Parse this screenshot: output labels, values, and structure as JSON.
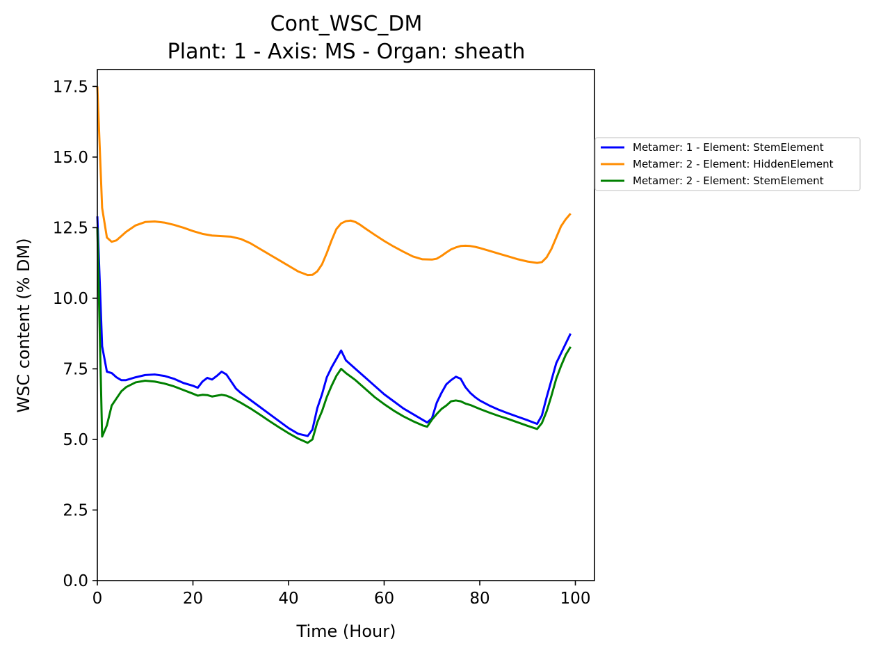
{
  "chart_data": {
    "type": "line",
    "title": "Cont_WSC_DM",
    "subtitle": "Plant: 1 - Axis: MS - Organ: sheath",
    "xlabel": "Time (Hour)",
    "ylabel": "WSC content (% DM)",
    "xlim": [
      0,
      104
    ],
    "ylim": [
      0,
      18.1
    ],
    "xticks": [
      0,
      20,
      40,
      60,
      80,
      100
    ],
    "xtick_labels": [
      "0",
      "20",
      "40",
      "60",
      "80",
      "100"
    ],
    "yticks": [
      0,
      2.5,
      5,
      7.5,
      10,
      12.5,
      15,
      17.5
    ],
    "ytick_labels": [
      "0.0",
      "2.5",
      "5.0",
      "7.5",
      "10.0",
      "12.5",
      "15.0",
      "17.5"
    ],
    "grid": false,
    "legend_position": "outside-right",
    "series": [
      {
        "name": "Metamer: 1 - Element: StemElement",
        "color": "#0000ff",
        "x": [
          0,
          1,
          2,
          3,
          4,
          5,
          6,
          8,
          10,
          12,
          14,
          16,
          18,
          20,
          21,
          22,
          23,
          24,
          25,
          26,
          27,
          28,
          29,
          30,
          32,
          34,
          36,
          38,
          40,
          42,
          44,
          45,
          46,
          47,
          48,
          49,
          50,
          51,
          52,
          54,
          56,
          58,
          60,
          62,
          64,
          66,
          68,
          69,
          70,
          71,
          72,
          73,
          74,
          75,
          76,
          77,
          78,
          79,
          80,
          82,
          84,
          86,
          88,
          90,
          92,
          93,
          94,
          95,
          96,
          97,
          98,
          99
        ],
        "values": [
          12.9,
          8.3,
          7.4,
          7.35,
          7.2,
          7.1,
          7.1,
          7.2,
          7.28,
          7.3,
          7.25,
          7.15,
          7.0,
          6.9,
          6.83,
          7.05,
          7.18,
          7.12,
          7.25,
          7.4,
          7.3,
          7.05,
          6.8,
          6.65,
          6.4,
          6.15,
          5.9,
          5.65,
          5.4,
          5.2,
          5.12,
          5.35,
          6.1,
          6.6,
          7.2,
          7.55,
          7.85,
          8.15,
          7.8,
          7.5,
          7.2,
          6.9,
          6.6,
          6.35,
          6.1,
          5.9,
          5.7,
          5.6,
          5.75,
          6.3,
          6.65,
          6.95,
          7.1,
          7.22,
          7.15,
          6.85,
          6.65,
          6.5,
          6.38,
          6.2,
          6.05,
          5.92,
          5.8,
          5.68,
          5.55,
          5.85,
          6.5,
          7.1,
          7.7,
          8.05,
          8.4,
          8.75
        ]
      },
      {
        "name": "Metamer: 2 - Element: HiddenElement",
        "color": "#ff8c00",
        "x": [
          0,
          1,
          2,
          3,
          4,
          5,
          6,
          8,
          10,
          12,
          14,
          16,
          18,
          20,
          22,
          24,
          26,
          28,
          30,
          32,
          34,
          36,
          38,
          40,
          42,
          44,
          45,
          46,
          47,
          48,
          49,
          50,
          51,
          52,
          53,
          54,
          55,
          56,
          58,
          60,
          62,
          64,
          66,
          68,
          70,
          71,
          72,
          73,
          74,
          75,
          76,
          77,
          78,
          79,
          80,
          82,
          84,
          86,
          88,
          90,
          92,
          93,
          94,
          95,
          96,
          97,
          98,
          99
        ],
        "values": [
          17.5,
          13.2,
          12.15,
          12.0,
          12.05,
          12.2,
          12.35,
          12.58,
          12.7,
          12.72,
          12.68,
          12.6,
          12.5,
          12.38,
          12.28,
          12.22,
          12.2,
          12.18,
          12.1,
          11.95,
          11.75,
          11.55,
          11.35,
          11.15,
          10.95,
          10.82,
          10.83,
          10.95,
          11.2,
          11.6,
          12.05,
          12.45,
          12.65,
          12.73,
          12.75,
          12.7,
          12.6,
          12.48,
          12.25,
          12.03,
          11.83,
          11.65,
          11.48,
          11.38,
          11.37,
          11.4,
          11.5,
          11.62,
          11.73,
          11.8,
          11.85,
          11.86,
          11.85,
          11.82,
          11.78,
          11.68,
          11.58,
          11.48,
          11.38,
          11.3,
          11.25,
          11.28,
          11.45,
          11.75,
          12.15,
          12.55,
          12.8,
          13.0
        ]
      },
      {
        "name": "Metamer: 2 - Element: StemElement",
        "color": "#008000",
        "x": [
          0,
          1,
          2,
          3,
          4,
          5,
          6,
          8,
          10,
          12,
          14,
          16,
          18,
          20,
          21,
          22,
          23,
          24,
          25,
          26,
          27,
          28,
          30,
          32,
          34,
          36,
          38,
          40,
          42,
          44,
          45,
          46,
          47,
          48,
          49,
          50,
          51,
          52,
          54,
          56,
          58,
          60,
          62,
          64,
          66,
          68,
          69,
          70,
          71,
          72,
          73,
          74,
          75,
          76,
          77,
          78,
          80,
          82,
          84,
          86,
          88,
          90,
          92,
          93,
          94,
          95,
          96,
          97,
          98,
          99
        ],
        "values": [
          12.5,
          5.1,
          5.5,
          6.2,
          6.45,
          6.7,
          6.85,
          7.02,
          7.08,
          7.05,
          6.98,
          6.88,
          6.75,
          6.62,
          6.55,
          6.58,
          6.57,
          6.52,
          6.55,
          6.58,
          6.55,
          6.48,
          6.3,
          6.1,
          5.88,
          5.65,
          5.43,
          5.22,
          5.03,
          4.88,
          5.0,
          5.6,
          6.0,
          6.5,
          6.9,
          7.25,
          7.5,
          7.35,
          7.1,
          6.8,
          6.5,
          6.25,
          6.02,
          5.82,
          5.65,
          5.5,
          5.45,
          5.7,
          5.9,
          6.08,
          6.2,
          6.35,
          6.38,
          6.35,
          6.27,
          6.22,
          6.08,
          5.95,
          5.83,
          5.72,
          5.6,
          5.48,
          5.37,
          5.58,
          6.0,
          6.55,
          7.15,
          7.6,
          8.0,
          8.28
        ]
      }
    ]
  }
}
